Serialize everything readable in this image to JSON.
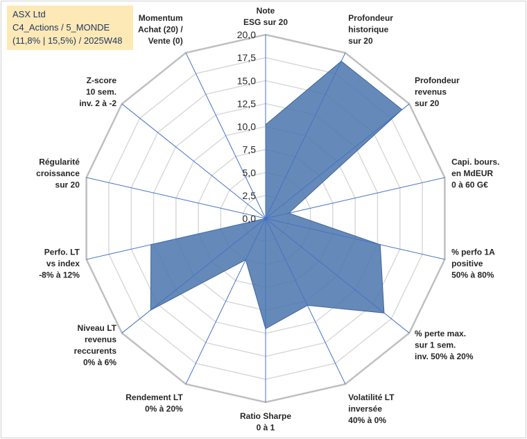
{
  "header": {
    "line1": "ASX Ltd",
    "line2": "C4_Actions / 5_MONDE",
    "line3": "(11,8% | 15,5%) / 2025W48"
  },
  "chart_data": {
    "type": "radar",
    "title": "ASX Ltd",
    "rmin": 0,
    "rmax": 20,
    "tick_step": 2.5,
    "tick_labels": [
      "0,0",
      "2,5",
      "5,0",
      "7,5",
      "10,0",
      "12,5",
      "15,0",
      "17,5",
      "20,0"
    ],
    "grid": true,
    "fill_color": "#4a76ad",
    "line_color": "#3f6597",
    "grid_color": "#d9d9d9",
    "spoke_color": "#4472c4",
    "categories": [
      {
        "lines": [
          "Note",
          "ESG sur 20"
        ]
      },
      {
        "lines": [
          "Profondeur",
          "historique",
          "sur 20"
        ]
      },
      {
        "lines": [
          "Profondeur",
          "revenus",
          "sur 20"
        ]
      },
      {
        "lines": [
          "Capi. bours.",
          "en MdEUR",
          "0 à 60 G€"
        ]
      },
      {
        "lines": [
          "% perfo 1A",
          "positive",
          "50% à 80%"
        ]
      },
      {
        "lines": [
          "% perte max.",
          "sur 1 sem.",
          "inv. 50% à 20%"
        ]
      },
      {
        "lines": [
          "Volatilité LT",
          "inversée",
          "40% à 0%"
        ]
      },
      {
        "lines": [
          "Ratio Sharpe",
          "0 à 1"
        ]
      },
      {
        "lines": [
          "Rendement LT",
          "0% à 20%"
        ]
      },
      {
        "lines": [
          "Niveau LT",
          "revenus",
          "reccurents",
          "0% à 6%"
        ]
      },
      {
        "lines": [
          "Perfo. LT",
          "vs index",
          "-8% à 12%"
        ]
      },
      {
        "lines": [
          "Régularité",
          "croissance",
          "sur 20"
        ]
      },
      {
        "lines": [
          "Z-score",
          "10 sem.",
          "inv. 2 à -2"
        ]
      },
      {
        "lines": [
          "Momentum",
          "Achat (20) /",
          "Vente (0)"
        ]
      }
    ],
    "values": [
      10.2,
      19.0,
      19.0,
      2.6,
      12.8,
      16.5,
      10.5,
      12.0,
      5.0,
      16.0,
      12.8,
      0.0,
      0.0,
      0.0
    ]
  }
}
